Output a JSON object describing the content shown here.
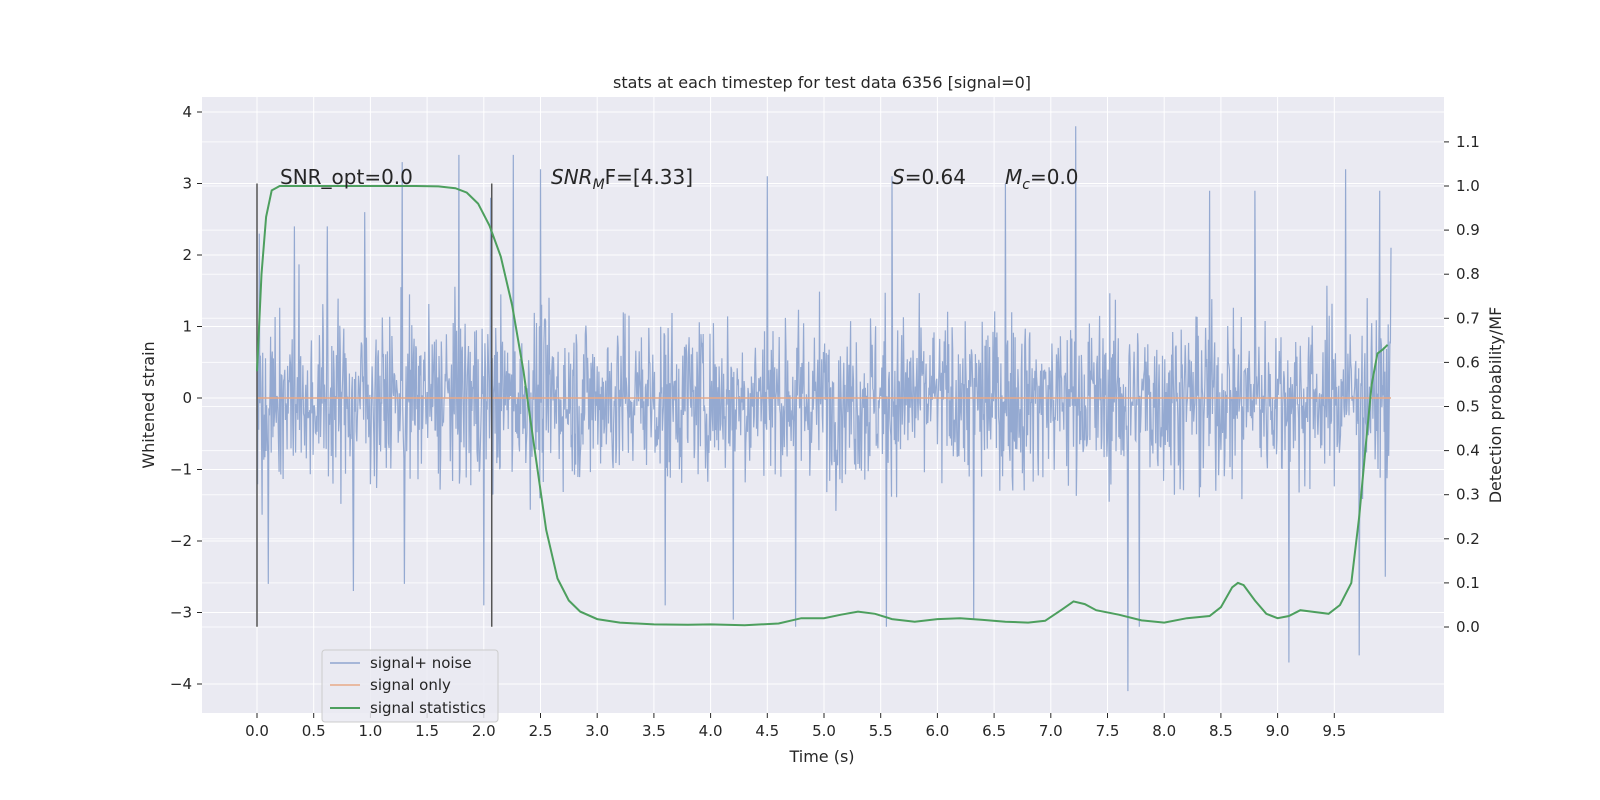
{
  "chart_data": {
    "type": "line",
    "title": "stats at each timestep for test data 6356 [signal=0]",
    "xlabel": "Time (s)",
    "ylabel": "Whitened strain",
    "ylabel_right": "Detection probability/MF",
    "xlim": [
      -0.5,
      10.5
    ],
    "ylim": [
      -4.4,
      4.2
    ],
    "ylim_right": [
      -0.2,
      1.2
    ],
    "xticks": [
      "0.0",
      "0.5",
      "1.0",
      "1.5",
      "2.0",
      "2.5",
      "3.0",
      "3.5",
      "4.0",
      "4.5",
      "5.0",
      "5.5",
      "6.0",
      "6.5",
      "7.0",
      "7.5",
      "8.0",
      "8.5",
      "9.0",
      "9.5"
    ],
    "yticks": [
      "4",
      "3",
      "2",
      "1",
      "0",
      "−1",
      "−2",
      "−3",
      "−4"
    ],
    "yticks_right": [
      "1.1",
      "1.0",
      "0.9",
      "0.8",
      "0.7",
      "0.6",
      "0.5",
      "0.4",
      "0.3",
      "0.2",
      "0.1",
      "0.0"
    ],
    "grid": true,
    "legend_position": "lower-left",
    "markers_x": [
      0.0,
      2.07
    ],
    "annotations": {
      "snr_opt": "SNR_opt=0.0",
      "snr_mf_prefix": "SNR",
      "snr_mf_sub": "M",
      "snr_mf_suffix": "F=[4.33]",
      "s_sym": "S",
      "s_val": "=0.64",
      "mc_sym": "M",
      "mc_sub": "c",
      "mc_val": "=0.0"
    },
    "series": [
      {
        "name": "signal+ noise",
        "color": "#8fa5cf",
        "axis": "left",
        "x_range": [
          0.0,
          10.0
        ],
        "band_typical": [
          -1.4,
          1.7
        ],
        "peaks_max": [
          [
            0.02,
            2.3
          ],
          [
            0.33,
            2.4
          ],
          [
            0.62,
            2.4
          ],
          [
            0.95,
            2.6
          ],
          [
            1.28,
            3.3
          ],
          [
            1.78,
            3.4
          ],
          [
            2.06,
            2.8
          ],
          [
            2.26,
            3.4
          ],
          [
            2.5,
            3.2
          ],
          [
            4.5,
            3.1
          ],
          [
            5.6,
            3.1
          ],
          [
            6.6,
            3.0
          ],
          [
            7.22,
            3.8
          ],
          [
            8.4,
            2.9
          ],
          [
            8.8,
            2.9
          ],
          [
            9.6,
            3.2
          ],
          [
            9.9,
            2.9
          ],
          [
            10.0,
            2.1
          ]
        ],
        "peaks_min": [
          [
            0.1,
            -2.6
          ],
          [
            0.85,
            -2.7
          ],
          [
            1.3,
            -2.6
          ],
          [
            2.0,
            -2.9
          ],
          [
            3.6,
            -2.9
          ],
          [
            4.2,
            -3.1
          ],
          [
            4.75,
            -3.2
          ],
          [
            5.55,
            -3.2
          ],
          [
            6.32,
            -3.1
          ],
          [
            7.68,
            -4.1
          ],
          [
            7.78,
            -3.2
          ],
          [
            9.1,
            -3.7
          ],
          [
            9.72,
            -3.6
          ],
          [
            9.95,
            -2.5
          ]
        ]
      },
      {
        "name": "signal only",
        "color": "#e8a987",
        "axis": "left",
        "x": [
          0.0,
          10.0
        ],
        "y": [
          0.0,
          0.0
        ]
      },
      {
        "name": "signal statistics",
        "color": "#4d9f5e",
        "axis": "right",
        "x": [
          0.0,
          0.04,
          0.08,
          0.13,
          0.2,
          0.3,
          0.5,
          0.8,
          1.0,
          1.2,
          1.4,
          1.6,
          1.75,
          1.85,
          1.95,
          2.05,
          2.15,
          2.25,
          2.35,
          2.45,
          2.55,
          2.65,
          2.75,
          2.85,
          3.0,
          3.2,
          3.5,
          3.8,
          4.0,
          4.3,
          4.6,
          4.8,
          5.0,
          5.15,
          5.3,
          5.45,
          5.6,
          5.8,
          6.0,
          6.2,
          6.4,
          6.6,
          6.8,
          6.95,
          7.1,
          7.2,
          7.3,
          7.4,
          7.6,
          7.8,
          8.0,
          8.2,
          8.4,
          8.5,
          8.6,
          8.65,
          8.7,
          8.8,
          8.9,
          9.0,
          9.1,
          9.2,
          9.3,
          9.45,
          9.55,
          9.65,
          9.72,
          9.78,
          9.83,
          9.88,
          9.93,
          9.97
        ],
        "y": [
          0.58,
          0.8,
          0.93,
          0.99,
          1.0,
          1.0,
          1.0,
          1.0,
          1.0,
          1.0,
          1.0,
          0.999,
          0.995,
          0.985,
          0.96,
          0.91,
          0.84,
          0.73,
          0.58,
          0.4,
          0.22,
          0.11,
          0.06,
          0.035,
          0.018,
          0.01,
          0.006,
          0.005,
          0.006,
          0.004,
          0.008,
          0.02,
          0.02,
          0.028,
          0.035,
          0.03,
          0.018,
          0.012,
          0.018,
          0.02,
          0.016,
          0.012,
          0.01,
          0.014,
          0.04,
          0.058,
          0.052,
          0.038,
          0.028,
          0.015,
          0.01,
          0.02,
          0.025,
          0.045,
          0.09,
          0.1,
          0.095,
          0.06,
          0.03,
          0.02,
          0.025,
          0.038,
          0.035,
          0.03,
          0.05,
          0.1,
          0.25,
          0.42,
          0.55,
          0.62,
          0.63,
          0.64
        ]
      }
    ]
  }
}
